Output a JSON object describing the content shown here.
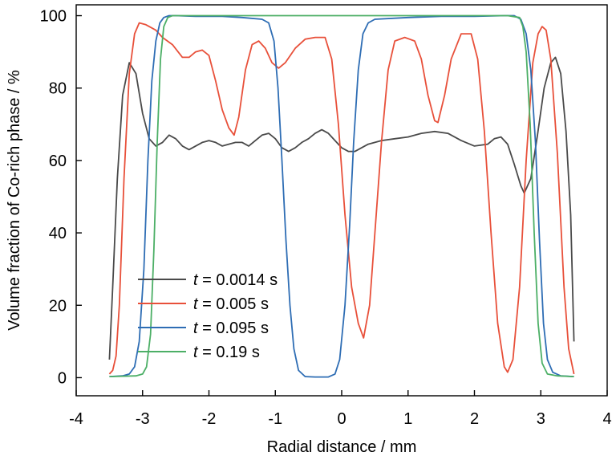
{
  "chart_data": {
    "type": "line",
    "xlabel": "Radial distance / mm",
    "ylabel": "Volume fraction of Co-rich phase / %",
    "xlim": [
      -4,
      4
    ],
    "ylim": [
      -5,
      103
    ],
    "xticks": [
      -4,
      -3,
      -2,
      -1,
      0,
      1,
      2,
      3,
      4
    ],
    "yticks": [
      0,
      20,
      40,
      60,
      80,
      100
    ],
    "grid": false,
    "legend_position": "lower-left",
    "series": [
      {
        "name": "t = 0.0014 s",
        "legend_italic": "t",
        "legend_rest": " = 0.0014 s",
        "color": "#4a4a4a",
        "points": [
          [
            -3.5,
            5
          ],
          [
            -3.45,
            25
          ],
          [
            -3.38,
            55
          ],
          [
            -3.3,
            78
          ],
          [
            -3.2,
            87
          ],
          [
            -3.1,
            84
          ],
          [
            -3.0,
            73
          ],
          [
            -2.9,
            66
          ],
          [
            -2.8,
            64
          ],
          [
            -2.7,
            65
          ],
          [
            -2.6,
            67
          ],
          [
            -2.5,
            66
          ],
          [
            -2.4,
            64
          ],
          [
            -2.3,
            63
          ],
          [
            -2.2,
            64
          ],
          [
            -2.1,
            65
          ],
          [
            -2.0,
            65.5
          ],
          [
            -1.9,
            65
          ],
          [
            -1.8,
            64
          ],
          [
            -1.7,
            64.5
          ],
          [
            -1.6,
            65
          ],
          [
            -1.5,
            65
          ],
          [
            -1.4,
            64
          ],
          [
            -1.3,
            65.5
          ],
          [
            -1.2,
            67
          ],
          [
            -1.1,
            67.5
          ],
          [
            -1.0,
            66
          ],
          [
            -0.9,
            63.5
          ],
          [
            -0.8,
            62.5
          ],
          [
            -0.7,
            63.5
          ],
          [
            -0.6,
            65
          ],
          [
            -0.5,
            66
          ],
          [
            -0.4,
            67.5
          ],
          [
            -0.3,
            68.5
          ],
          [
            -0.2,
            67.5
          ],
          [
            -0.1,
            65.5
          ],
          [
            0.0,
            63.5
          ],
          [
            0.1,
            62.5
          ],
          [
            0.2,
            62.5
          ],
          [
            0.3,
            63.5
          ],
          [
            0.4,
            64.5
          ],
          [
            0.6,
            65.5
          ],
          [
            0.8,
            66
          ],
          [
            1.0,
            66.5
          ],
          [
            1.2,
            67.5
          ],
          [
            1.4,
            68
          ],
          [
            1.6,
            67.5
          ],
          [
            1.8,
            65.5
          ],
          [
            2.0,
            64
          ],
          [
            2.2,
            64.5
          ],
          [
            2.3,
            66
          ],
          [
            2.4,
            66.5
          ],
          [
            2.5,
            64.5
          ],
          [
            2.6,
            59
          ],
          [
            2.7,
            53
          ],
          [
            2.75,
            51
          ],
          [
            2.85,
            55
          ],
          [
            2.95,
            67
          ],
          [
            3.05,
            80
          ],
          [
            3.15,
            87
          ],
          [
            3.22,
            88.5
          ],
          [
            3.3,
            84
          ],
          [
            3.38,
            68
          ],
          [
            3.45,
            45
          ],
          [
            3.5,
            10
          ]
        ]
      },
      {
        "name": "t = 0.005 s",
        "legend_italic": "t",
        "legend_rest": " = 0.005 s",
        "color": "#e8503a",
        "points": [
          [
            -3.5,
            1
          ],
          [
            -3.45,
            2
          ],
          [
            -3.4,
            6
          ],
          [
            -3.35,
            20
          ],
          [
            -3.28,
            55
          ],
          [
            -3.2,
            84
          ],
          [
            -3.12,
            95
          ],
          [
            -3.05,
            98
          ],
          [
            -2.95,
            97.5
          ],
          [
            -2.8,
            96
          ],
          [
            -2.7,
            94
          ],
          [
            -2.55,
            92
          ],
          [
            -2.4,
            88.5
          ],
          [
            -2.3,
            88.5
          ],
          [
            -2.2,
            90
          ],
          [
            -2.1,
            90.5
          ],
          [
            -2.0,
            89
          ],
          [
            -1.9,
            82
          ],
          [
            -1.8,
            74
          ],
          [
            -1.7,
            69
          ],
          [
            -1.62,
            67
          ],
          [
            -1.55,
            72
          ],
          [
            -1.45,
            85
          ],
          [
            -1.35,
            92
          ],
          [
            -1.25,
            93
          ],
          [
            -1.15,
            91
          ],
          [
            -1.05,
            87
          ],
          [
            -0.95,
            85.5
          ],
          [
            -0.85,
            87
          ],
          [
            -0.7,
            91
          ],
          [
            -0.55,
            93.5
          ],
          [
            -0.4,
            94
          ],
          [
            -0.25,
            94
          ],
          [
            -0.15,
            88
          ],
          [
            -0.05,
            70
          ],
          [
            0.05,
            45
          ],
          [
            0.15,
            25
          ],
          [
            0.25,
            15
          ],
          [
            0.33,
            11
          ],
          [
            0.42,
            20
          ],
          [
            0.5,
            40
          ],
          [
            0.6,
            65
          ],
          [
            0.7,
            85
          ],
          [
            0.8,
            93
          ],
          [
            0.95,
            94
          ],
          [
            1.1,
            93
          ],
          [
            1.2,
            88
          ],
          [
            1.3,
            78
          ],
          [
            1.4,
            71
          ],
          [
            1.45,
            70.5
          ],
          [
            1.55,
            78
          ],
          [
            1.65,
            88
          ],
          [
            1.8,
            95
          ],
          [
            1.95,
            95
          ],
          [
            2.05,
            88
          ],
          [
            2.15,
            68
          ],
          [
            2.25,
            40
          ],
          [
            2.35,
            15
          ],
          [
            2.45,
            3
          ],
          [
            2.5,
            1.5
          ],
          [
            2.58,
            5
          ],
          [
            2.68,
            25
          ],
          [
            2.78,
            60
          ],
          [
            2.88,
            87
          ],
          [
            2.96,
            95
          ],
          [
            3.02,
            97
          ],
          [
            3.08,
            96
          ],
          [
            3.15,
            88
          ],
          [
            3.25,
            62
          ],
          [
            3.35,
            25
          ],
          [
            3.42,
            8
          ],
          [
            3.5,
            1
          ]
        ]
      },
      {
        "name": "t = 0.095 s",
        "legend_italic": "t",
        "legend_rest": " = 0.095 s",
        "color": "#2e6db4",
        "points": [
          [
            -3.5,
            0.3
          ],
          [
            -3.3,
            0.5
          ],
          [
            -3.2,
            1
          ],
          [
            -3.12,
            3
          ],
          [
            -3.05,
            10
          ],
          [
            -2.98,
            30
          ],
          [
            -2.92,
            60
          ],
          [
            -2.86,
            82
          ],
          [
            -2.8,
            93
          ],
          [
            -2.74,
            98
          ],
          [
            -2.68,
            99.5
          ],
          [
            -2.6,
            100
          ],
          [
            -2.5,
            100
          ],
          [
            -2.2,
            99.8
          ],
          [
            -1.8,
            99.8
          ],
          [
            -1.5,
            99.5
          ],
          [
            -1.2,
            99
          ],
          [
            -1.1,
            98
          ],
          [
            -1.02,
            93
          ],
          [
            -0.96,
            80
          ],
          [
            -0.9,
            60
          ],
          [
            -0.84,
            38
          ],
          [
            -0.78,
            20
          ],
          [
            -0.72,
            8
          ],
          [
            -0.65,
            2
          ],
          [
            -0.55,
            0.3
          ],
          [
            -0.4,
            0.2
          ],
          [
            -0.2,
            0.2
          ],
          [
            -0.1,
            1
          ],
          [
            -0.03,
            5
          ],
          [
            0.05,
            20
          ],
          [
            0.12,
            42
          ],
          [
            0.18,
            65
          ],
          [
            0.25,
            85
          ],
          [
            0.32,
            95
          ],
          [
            0.4,
            98
          ],
          [
            0.5,
            99
          ],
          [
            1.0,
            99.5
          ],
          [
            1.5,
            99.8
          ],
          [
            2.0,
            99.8
          ],
          [
            2.45,
            100
          ],
          [
            2.6,
            100
          ],
          [
            2.7,
            99
          ],
          [
            2.78,
            95
          ],
          [
            2.85,
            85
          ],
          [
            2.92,
            65
          ],
          [
            2.98,
            38
          ],
          [
            3.04,
            15
          ],
          [
            3.1,
            5
          ],
          [
            3.18,
            1.5
          ],
          [
            3.3,
            0.5
          ],
          [
            3.5,
            0.3
          ]
        ]
      },
      {
        "name": "t = 0.19 s",
        "legend_italic": "t",
        "legend_rest": " = 0.19 s",
        "color": "#4caf66",
        "points": [
          [
            -3.5,
            0.3
          ],
          [
            -3.1,
            0.5
          ],
          [
            -3.0,
            1
          ],
          [
            -2.94,
            3
          ],
          [
            -2.88,
            12
          ],
          [
            -2.83,
            35
          ],
          [
            -2.78,
            65
          ],
          [
            -2.73,
            88
          ],
          [
            -2.68,
            97
          ],
          [
            -2.62,
            99.5
          ],
          [
            -2.55,
            100
          ],
          [
            -2.0,
            100
          ],
          [
            -1.0,
            100
          ],
          [
            0.0,
            100
          ],
          [
            1.0,
            100
          ],
          [
            2.0,
            100
          ],
          [
            2.5,
            100
          ],
          [
            2.68,
            99.5
          ],
          [
            2.73,
            97
          ],
          [
            2.78,
            90
          ],
          [
            2.84,
            70
          ],
          [
            2.9,
            40
          ],
          [
            2.96,
            15
          ],
          [
            3.02,
            4
          ],
          [
            3.1,
            1
          ],
          [
            3.25,
            0.5
          ],
          [
            3.5,
            0.3
          ]
        ]
      }
    ]
  }
}
